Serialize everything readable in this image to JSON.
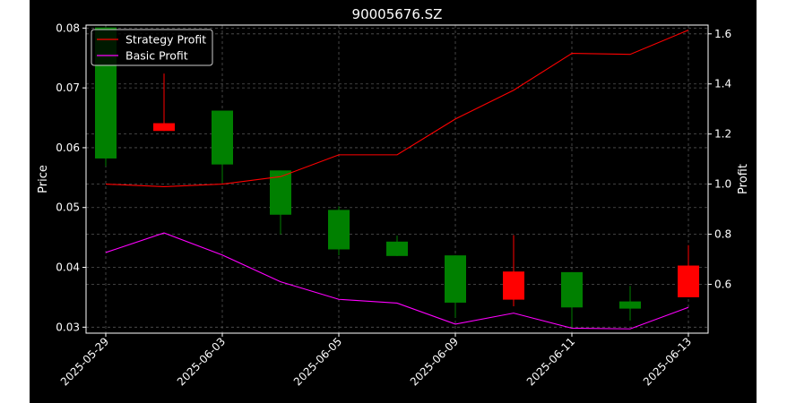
{
  "chart_data": {
    "type": "candlestick",
    "title": "90005676.SZ",
    "xlabel": "",
    "ylabel": "Price",
    "y2label": "Profit",
    "x_tick_labels": [
      "2025-05-29",
      "2025-06-03",
      "2025-06-05",
      "2025-06-09",
      "2025-06-11",
      "2025-06-13"
    ],
    "ylim": [
      0.029,
      0.0805
    ],
    "y2lim": [
      0.405,
      1.635
    ],
    "yticks": [
      0.03,
      0.04,
      0.05,
      0.06,
      0.07,
      0.08
    ],
    "y2ticks": [
      0.6,
      0.8,
      1.0,
      1.2,
      1.4,
      1.6
    ],
    "grid": true,
    "legend_position": "top-left",
    "candles": [
      {
        "open": 0.0582,
        "high": 0.0801,
        "low": 0.0569,
        "close": 0.0801,
        "color": "green"
      },
      {
        "open": 0.0628,
        "high": 0.0724,
        "low": 0.0628,
        "close": 0.0641,
        "color": "red"
      },
      {
        "open": 0.0572,
        "high": 0.0662,
        "low": 0.0541,
        "close": 0.0662,
        "color": "green"
      },
      {
        "open": 0.0488,
        "high": 0.0562,
        "low": 0.0455,
        "close": 0.0562,
        "color": "green"
      },
      {
        "open": 0.043,
        "high": 0.0502,
        "low": 0.042,
        "close": 0.0496,
        "color": "green"
      },
      {
        "open": 0.0419,
        "high": 0.0453,
        "low": 0.0419,
        "close": 0.0443,
        "color": "green"
      },
      {
        "open": 0.0341,
        "high": 0.042,
        "low": 0.0316,
        "close": 0.042,
        "color": "green"
      },
      {
        "open": 0.0346,
        "high": 0.0454,
        "low": 0.0335,
        "close": 0.0393,
        "color": "red"
      },
      {
        "open": 0.0333,
        "high": 0.0392,
        "low": 0.0298,
        "close": 0.0392,
        "color": "green"
      },
      {
        "open": 0.0331,
        "high": 0.0369,
        "low": 0.0311,
        "close": 0.0343,
        "color": "green"
      },
      {
        "open": 0.035,
        "high": 0.0437,
        "low": 0.035,
        "close": 0.0403,
        "color": "red"
      }
    ],
    "series": [
      {
        "name": "Strategy Profit",
        "color": "#ff0000",
        "values": [
          1.0,
          0.99,
          1.0,
          1.03,
          1.117,
          1.117,
          1.26,
          1.375,
          1.522,
          1.518,
          1.615
        ]
      },
      {
        "name": "Basic Profit",
        "color": "#ff00ff",
        "values": [
          0.727,
          0.805,
          0.717,
          0.61,
          0.54,
          0.525,
          0.441,
          0.485,
          0.425,
          0.422,
          0.508
        ]
      }
    ],
    "colors": {
      "up": "#008000",
      "down": "#ff0000",
      "background": "#000000",
      "grid": "#555555"
    }
  }
}
